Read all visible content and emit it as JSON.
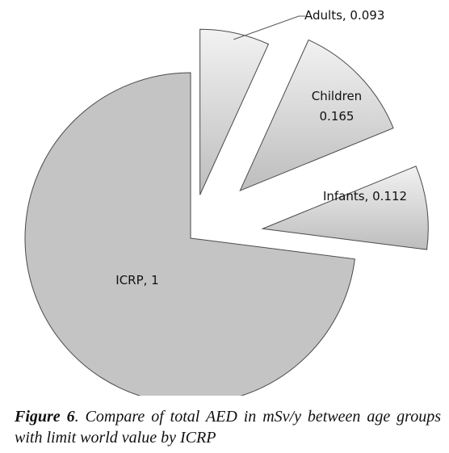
{
  "chart_data": {
    "type": "pie",
    "categories": [
      "ICRP",
      "Adults",
      "Children",
      "Infants"
    ],
    "values": [
      1,
      0.093,
      0.165,
      0.112
    ],
    "data_labels": [
      {
        "line1": "ICRP, 1",
        "line2": ""
      },
      {
        "line1": "Adults, 0.093",
        "line2": ""
      },
      {
        "line1": "Children",
        "line2": "0.165"
      },
      {
        "line1": "Infants, 0.112",
        "line2": ""
      }
    ],
    "exploded": [
      false,
      true,
      true,
      true
    ],
    "colors": {
      "icrp_fill": "#c4c4c4",
      "slice_light": "#f2f2f2",
      "slice_dark": "#bdbdbd",
      "stroke": "#4a4a4a",
      "label_line": "#555555"
    },
    "legend": "none",
    "title": ""
  },
  "caption": {
    "label": "Figure 6",
    "text": ". Compare of total AED in mSv/y between age groups with limit world value by ICRP"
  }
}
